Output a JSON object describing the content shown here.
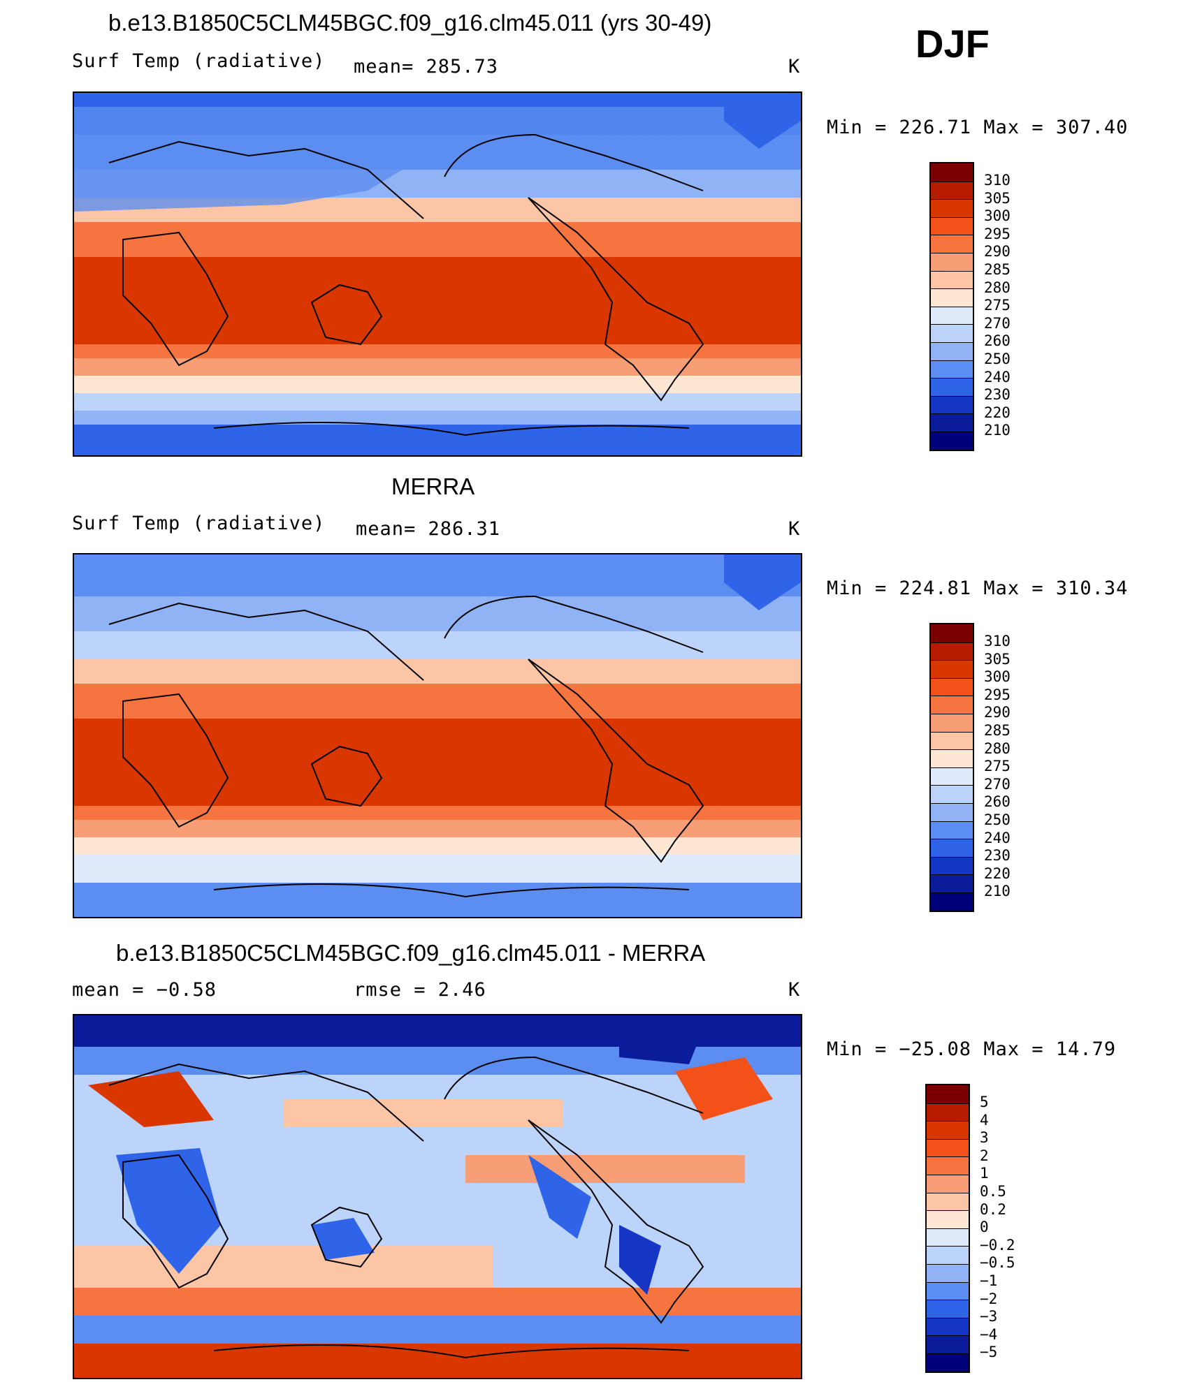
{
  "djf": "DJF",
  "panels": [
    {
      "title": "b.e13.B1850C5CLM45BGC.f09_g16.clm45.011 (yrs 30-49)",
      "subleft": "Surf Temp (radiative)",
      "submid": "mean= 285.73",
      "subright": "K",
      "minmax": "Min = 226.71 Max = 307.40"
    },
    {
      "title": "MERRA",
      "subleft": "Surf Temp (radiative)",
      "submid": "mean= 286.31",
      "subright": "K",
      "minmax": "Min = 224.81 Max = 310.34"
    },
    {
      "title": "b.e13.B1850C5CLM45BGC.f09_g16.clm45.011 - MERRA",
      "subleft": "mean =   −0.58",
      "submid": "rmse =    2.46",
      "subright": "K",
      "minmax": "Min = −25.08 Max =  14.79"
    }
  ],
  "colorbar_temp": {
    "labels": [
      "310",
      "305",
      "300",
      "295",
      "290",
      "285",
      "280",
      "275",
      "270",
      "260",
      "250",
      "240",
      "230",
      "220",
      "210"
    ],
    "colors": [
      "#7a0000",
      "#b51c00",
      "#d93600",
      "#f2521a",
      "#f5743f",
      "#f89e76",
      "#fbc5a6",
      "#fde6d2",
      "#dfeafb",
      "#bcd3fa",
      "#8fb3f5",
      "#5c8df0",
      "#2f63e8",
      "#1536c4",
      "#0a1c9a",
      "#00007a"
    ]
  },
  "colorbar_diff": {
    "labels": [
      "5",
      "4",
      "3",
      "2",
      "1",
      "0.5",
      "0.2",
      "0",
      "−0.2",
      "−0.5",
      "−1",
      "−2",
      "−3",
      "−4",
      "−5"
    ],
    "colors": [
      "#7a0000",
      "#b51c00",
      "#d93600",
      "#f2521a",
      "#f5743f",
      "#f89e76",
      "#fbc5a6",
      "#fde6d2",
      "#dfeafb",
      "#bcd3fa",
      "#8fb3f5",
      "#5c8df0",
      "#2f63e8",
      "#1536c4",
      "#0a1c9a",
      "#00007a"
    ]
  }
}
